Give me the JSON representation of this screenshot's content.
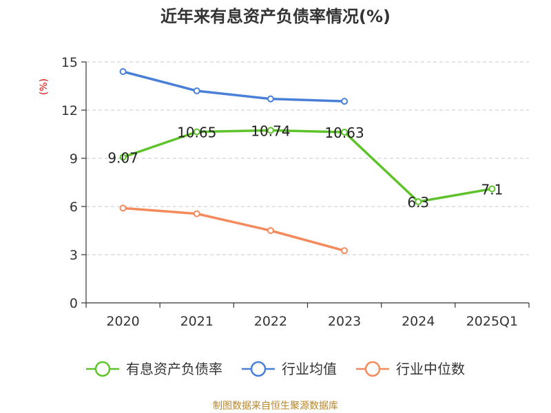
{
  "chart_data": {
    "type": "line",
    "title": "近年来有息资产负债率情况(%)",
    "ylabel": "(%)",
    "xlabel": "",
    "categories": [
      "2020",
      "2021",
      "2022",
      "2023",
      "2024",
      "2025Q1"
    ],
    "ylim": [
      0,
      15
    ],
    "yticks": [
      0,
      3,
      6,
      9,
      12,
      15
    ],
    "grid": true,
    "legend_position": "bottom",
    "series": [
      {
        "name": "有息资产负债率",
        "color": "#5ec32b",
        "values": [
          9.07,
          10.65,
          10.74,
          10.63,
          6.3,
          7.1
        ],
        "labels": [
          "9.07",
          "10.65",
          "10.74",
          "10.63",
          "6.3",
          "7.1"
        ],
        "show_labels": true
      },
      {
        "name": "行业均值",
        "color": "#4a7fd8",
        "values": [
          14.4,
          13.2,
          12.7,
          12.55,
          null,
          null
        ],
        "labels": [],
        "show_labels": false
      },
      {
        "name": "行业中位数",
        "color": "#f48a5c",
        "values": [
          5.9,
          5.55,
          4.5,
          3.25,
          null,
          null
        ],
        "labels": [],
        "show_labels": false
      }
    ]
  },
  "source": "制图数据来自恒生聚源数据库"
}
